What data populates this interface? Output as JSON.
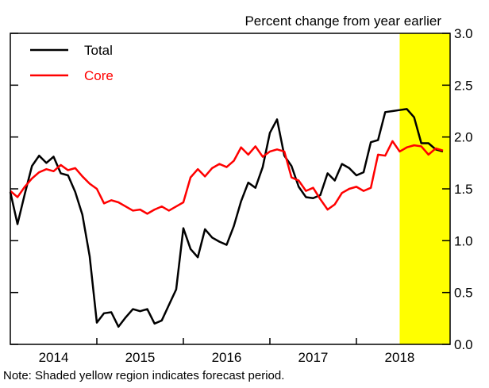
{
  "chart_data": {
    "type": "line",
    "title": "Percent change from year earlier",
    "note": "Note: Shaded yellow region indicates forecast period.",
    "x": [
      2014,
      2014.083,
      2014.167,
      2014.25,
      2014.333,
      2014.417,
      2014.5,
      2014.583,
      2014.667,
      2014.75,
      2014.833,
      2014.917,
      2015,
      2015.083,
      2015.167,
      2015.25,
      2015.333,
      2015.417,
      2015.5,
      2015.583,
      2015.667,
      2015.75,
      2015.833,
      2015.917,
      2016,
      2016.083,
      2016.167,
      2016.25,
      2016.333,
      2016.417,
      2016.5,
      2016.583,
      2016.667,
      2016.75,
      2016.833,
      2016.917,
      2017,
      2017.083,
      2017.167,
      2017.25,
      2017.333,
      2017.417,
      2017.5,
      2017.583,
      2017.667,
      2017.75,
      2017.833,
      2017.917,
      2018,
      2018.083,
      2018.167,
      2018.25,
      2018.333,
      2018.417,
      2018.5,
      2018.583,
      2018.667,
      2018.75,
      2018.833,
      2018.917,
      2019
    ],
    "series": [
      {
        "name": "Total",
        "color": "#000000",
        "values": [
          1.47,
          1.16,
          1.45,
          1.72,
          1.82,
          1.75,
          1.81,
          1.65,
          1.63,
          1.47,
          1.25,
          0.85,
          0.21,
          0.3,
          0.31,
          0.17,
          0.26,
          0.34,
          0.32,
          0.34,
          0.2,
          0.23,
          0.38,
          0.53,
          1.12,
          0.92,
          0.84,
          1.11,
          1.03,
          0.99,
          0.96,
          1.14,
          1.38,
          1.56,
          1.51,
          1.71,
          2.04,
          2.17,
          1.82,
          1.72,
          1.52,
          1.42,
          1.41,
          1.44,
          1.65,
          1.58,
          1.74,
          1.7,
          1.63,
          1.66,
          1.95,
          1.97,
          2.24,
          2.25,
          2.26,
          2.27,
          2.19,
          1.94,
          1.94,
          1.88,
          1.86
        ]
      },
      {
        "name": "Core",
        "color": "#ff0000",
        "values": [
          1.48,
          1.42,
          1.52,
          1.6,
          1.66,
          1.69,
          1.67,
          1.73,
          1.68,
          1.7,
          1.62,
          1.55,
          1.5,
          1.36,
          1.39,
          1.37,
          1.33,
          1.29,
          1.3,
          1.26,
          1.3,
          1.33,
          1.29,
          1.33,
          1.37,
          1.61,
          1.69,
          1.62,
          1.7,
          1.74,
          1.71,
          1.77,
          1.9,
          1.83,
          1.91,
          1.81,
          1.86,
          1.88,
          1.86,
          1.61,
          1.58,
          1.48,
          1.51,
          1.4,
          1.3,
          1.35,
          1.46,
          1.5,
          1.52,
          1.48,
          1.51,
          1.83,
          1.82,
          1.96,
          1.86,
          1.9,
          1.92,
          1.91,
          1.83,
          1.89,
          1.87
        ]
      }
    ],
    "forecast_shade": {
      "from": 2018.5,
      "color": "#ffff00"
    },
    "xlim": [
      2014,
      2019.083
    ],
    "xticks": [
      {
        "value": 2014.5,
        "label": "2014"
      },
      {
        "value": 2015.5,
        "label": "2015"
      },
      {
        "value": 2016.5,
        "label": "2016"
      },
      {
        "value": 2017.5,
        "label": "2017"
      },
      {
        "value": 2018.5,
        "label": "2018"
      }
    ],
    "x_boundaries": [
      2015,
      2016,
      2017,
      2018
    ],
    "ylim": [
      0,
      3
    ],
    "yticks": [
      {
        "value": 0,
        "label": "0.0"
      },
      0.5,
      {
        "value": 1,
        "label": "1.0"
      },
      1.5,
      {
        "value": 2,
        "label": "2.0"
      },
      2.5,
      {
        "value": 3,
        "label": "3.0"
      }
    ],
    "legend": "top-left"
  }
}
